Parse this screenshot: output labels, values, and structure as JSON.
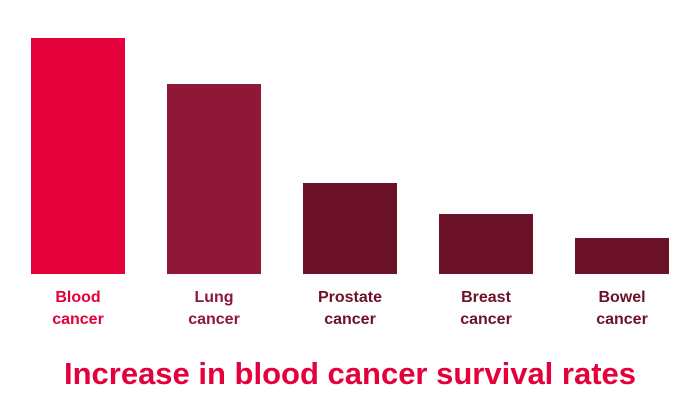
{
  "chart_data": {
    "type": "bar",
    "title": "Increase in blood cancer survival rates",
    "categories": [
      "Blood cancer",
      "Lung cancer",
      "Prostate cancer",
      "Breast cancer",
      "Bowel cancer"
    ],
    "values": [
      236,
      190,
      91,
      60,
      36
    ],
    "colors": [
      "#e4003b",
      "#8f1737",
      "#6b1229",
      "#6b1229",
      "#6b1229"
    ],
    "ylim": [
      0,
      236
    ]
  }
}
